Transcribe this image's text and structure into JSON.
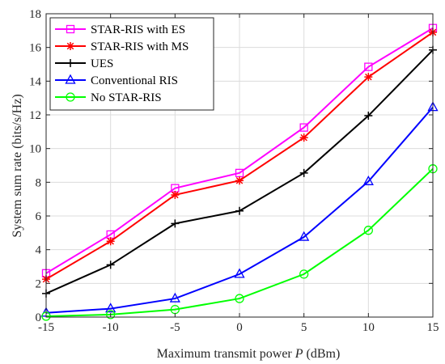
{
  "chart_data": {
    "type": "line",
    "title": "",
    "xlabel": "Maximum transmit power  P (dBm)",
    "xlabel_parts": {
      "prefix": "Maximum transmit power  ",
      "variable": "P",
      "suffix": " (dBm)"
    },
    "ylabel": "System sum rate (bits/s/Hz)",
    "x": [
      -15,
      -10,
      -5,
      0,
      5,
      10,
      15
    ],
    "xticks": [
      "-15",
      "-10",
      "-5",
      "0",
      "5",
      "10",
      "15"
    ],
    "yticks": [
      "0",
      "2",
      "4",
      "6",
      "8",
      "10",
      "12",
      "14",
      "16",
      "18"
    ],
    "xlim": [
      -15,
      15
    ],
    "ylim": [
      0,
      18
    ],
    "grid": true,
    "legend_position": "top-left",
    "series": [
      {
        "name": "STAR-RIS with ES",
        "color": "#ff00ff",
        "marker": "square",
        "values": [
          2.6,
          4.9,
          7.65,
          8.55,
          11.25,
          14.85,
          17.15
        ]
      },
      {
        "name": "STAR-RIS with MS",
        "color": "#ff0000",
        "marker": "asterisk",
        "values": [
          2.25,
          4.5,
          7.25,
          8.1,
          10.65,
          14.25,
          16.9
        ]
      },
      {
        "name": "UES",
        "color": "#000000",
        "marker": "plus",
        "values": [
          1.4,
          3.1,
          5.55,
          6.3,
          8.55,
          11.95,
          15.85
        ]
      },
      {
        "name": "Conventional RIS",
        "color": "#0000ff",
        "marker": "triangle",
        "values": [
          0.25,
          0.5,
          1.1,
          2.55,
          4.75,
          8.05,
          12.45
        ]
      },
      {
        "name": "No STAR-RIS",
        "color": "#00ff00",
        "marker": "circle",
        "values": [
          0.05,
          0.15,
          0.45,
          1.1,
          2.55,
          5.15,
          8.8
        ]
      }
    ]
  }
}
